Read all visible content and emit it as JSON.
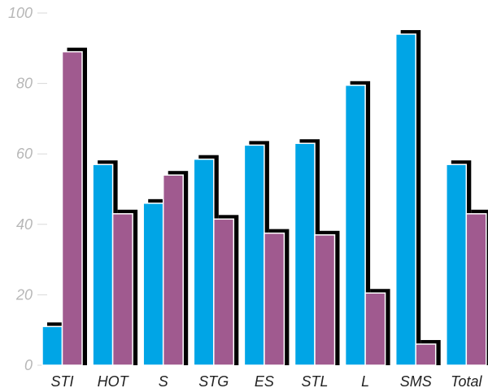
{
  "chart_data": {
    "type": "bar",
    "title": "",
    "xlabel": "",
    "ylabel": "",
    "ylim": [
      0,
      100
    ],
    "yticks": [
      0,
      20,
      40,
      60,
      80,
      100
    ],
    "grid": false,
    "legend": "none",
    "categories": [
      "STI",
      "HOT",
      "S",
      "STG",
      "ES",
      "STL",
      "L",
      "SMS",
      "Total"
    ],
    "series": [
      {
        "values": [
          11,
          57,
          46,
          58.5,
          62.5,
          63,
          79.5,
          94,
          57
        ],
        "color": "#00a5e6"
      },
      {
        "values": [
          89,
          43,
          54,
          41.5,
          37.5,
          37,
          20.5,
          6,
          43
        ],
        "color": "#a05a8f"
      }
    ],
    "shadow_color": "#000000"
  }
}
